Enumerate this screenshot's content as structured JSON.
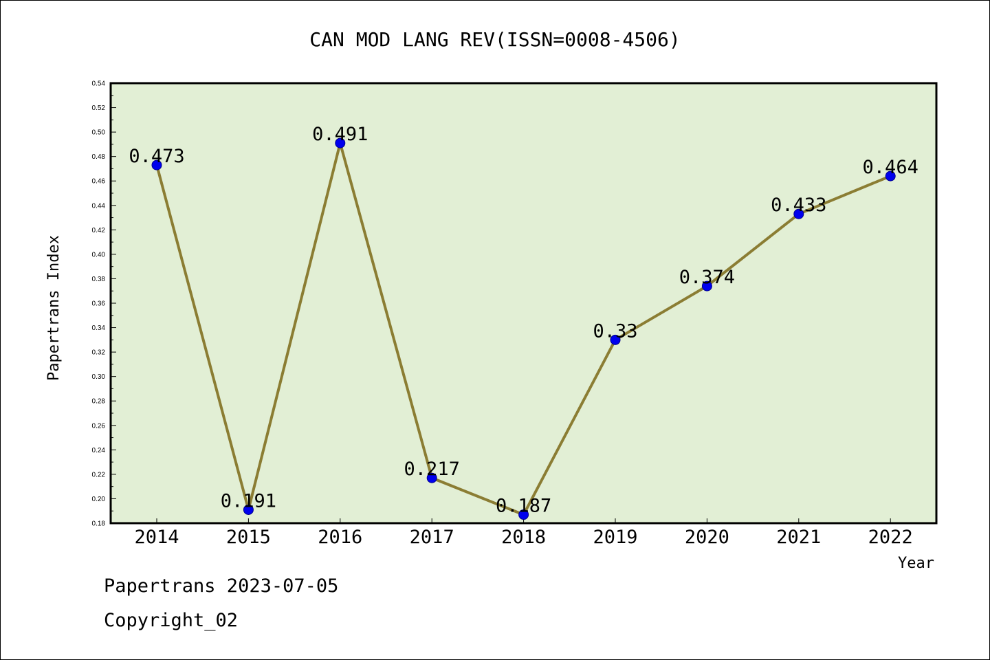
{
  "chart_data": {
    "type": "line",
    "title": "CAN MOD LANG REV(ISSN=0008-4506)",
    "xlabel": "Year",
    "ylabel": "Papertrans Index",
    "x": [
      "2014",
      "2015",
      "2016",
      "2017",
      "2018",
      "2019",
      "2020",
      "2021",
      "2022"
    ],
    "series": [
      {
        "values": [
          0.473,
          0.191,
          0.491,
          0.217,
          0.187,
          0.33,
          0.374,
          0.433,
          0.464
        ],
        "labels": [
          "0.473",
          "0.191",
          "0.491",
          "0.217",
          "0.187",
          "0.33",
          "0.374",
          "0.433",
          "0.464"
        ]
      }
    ],
    "ylim": [
      0.18,
      0.54
    ],
    "yticks": [
      "0.18",
      "0.20",
      "0.22",
      "0.24",
      "0.26",
      "0.28",
      "0.30",
      "0.32",
      "0.34",
      "0.36",
      "0.38",
      "0.40",
      "0.42",
      "0.44",
      "0.46",
      "0.48",
      "0.50",
      "0.52",
      "0.54"
    ],
    "grid": false,
    "legend": "none",
    "colors": {
      "plot_background": "#e2efd5",
      "line": "#8b7d33",
      "marker": "#0000ee"
    }
  },
  "footer": {
    "line1": "Papertrans 2023-07-05",
    "line2": "Copyright_02"
  }
}
